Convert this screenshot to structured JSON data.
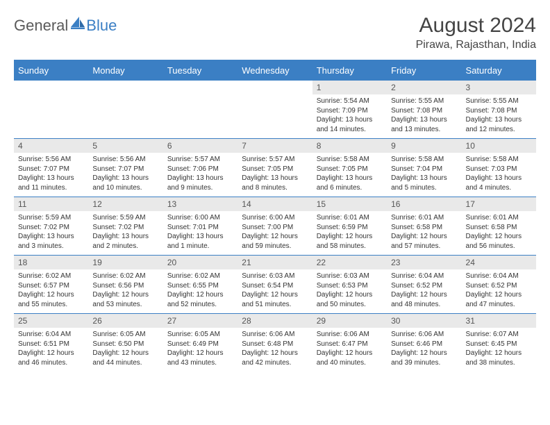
{
  "logo": {
    "text1": "General",
    "text2": "Blue"
  },
  "title": "August 2024",
  "location": "Pirawa, Rajasthan, India",
  "colors": {
    "brand_blue": "#3b7fc4",
    "daynum_bg": "#e9e9e9",
    "text": "#333333",
    "header_text": "#444444",
    "background": "#ffffff"
  },
  "fonts": {
    "title_size_pt": 22,
    "location_size_pt": 12,
    "dayhead_size_pt": 10,
    "body_size_pt": 7.5
  },
  "day_headers": [
    "Sunday",
    "Monday",
    "Tuesday",
    "Wednesday",
    "Thursday",
    "Friday",
    "Saturday"
  ],
  "weeks": [
    [
      null,
      null,
      null,
      null,
      {
        "n": "1",
        "sr": "Sunrise: 5:54 AM",
        "ss": "Sunset: 7:09 PM",
        "d1": "Daylight: 13 hours",
        "d2": "and 14 minutes."
      },
      {
        "n": "2",
        "sr": "Sunrise: 5:55 AM",
        "ss": "Sunset: 7:08 PM",
        "d1": "Daylight: 13 hours",
        "d2": "and 13 minutes."
      },
      {
        "n": "3",
        "sr": "Sunrise: 5:55 AM",
        "ss": "Sunset: 7:08 PM",
        "d1": "Daylight: 13 hours",
        "d2": "and 12 minutes."
      }
    ],
    [
      {
        "n": "4",
        "sr": "Sunrise: 5:56 AM",
        "ss": "Sunset: 7:07 PM",
        "d1": "Daylight: 13 hours",
        "d2": "and 11 minutes."
      },
      {
        "n": "5",
        "sr": "Sunrise: 5:56 AM",
        "ss": "Sunset: 7:07 PM",
        "d1": "Daylight: 13 hours",
        "d2": "and 10 minutes."
      },
      {
        "n": "6",
        "sr": "Sunrise: 5:57 AM",
        "ss": "Sunset: 7:06 PM",
        "d1": "Daylight: 13 hours",
        "d2": "and 9 minutes."
      },
      {
        "n": "7",
        "sr": "Sunrise: 5:57 AM",
        "ss": "Sunset: 7:05 PM",
        "d1": "Daylight: 13 hours",
        "d2": "and 8 minutes."
      },
      {
        "n": "8",
        "sr": "Sunrise: 5:58 AM",
        "ss": "Sunset: 7:05 PM",
        "d1": "Daylight: 13 hours",
        "d2": "and 6 minutes."
      },
      {
        "n": "9",
        "sr": "Sunrise: 5:58 AM",
        "ss": "Sunset: 7:04 PM",
        "d1": "Daylight: 13 hours",
        "d2": "and 5 minutes."
      },
      {
        "n": "10",
        "sr": "Sunrise: 5:58 AM",
        "ss": "Sunset: 7:03 PM",
        "d1": "Daylight: 13 hours",
        "d2": "and 4 minutes."
      }
    ],
    [
      {
        "n": "11",
        "sr": "Sunrise: 5:59 AM",
        "ss": "Sunset: 7:02 PM",
        "d1": "Daylight: 13 hours",
        "d2": "and 3 minutes."
      },
      {
        "n": "12",
        "sr": "Sunrise: 5:59 AM",
        "ss": "Sunset: 7:02 PM",
        "d1": "Daylight: 13 hours",
        "d2": "and 2 minutes."
      },
      {
        "n": "13",
        "sr": "Sunrise: 6:00 AM",
        "ss": "Sunset: 7:01 PM",
        "d1": "Daylight: 13 hours",
        "d2": "and 1 minute."
      },
      {
        "n": "14",
        "sr": "Sunrise: 6:00 AM",
        "ss": "Sunset: 7:00 PM",
        "d1": "Daylight: 12 hours",
        "d2": "and 59 minutes."
      },
      {
        "n": "15",
        "sr": "Sunrise: 6:01 AM",
        "ss": "Sunset: 6:59 PM",
        "d1": "Daylight: 12 hours",
        "d2": "and 58 minutes."
      },
      {
        "n": "16",
        "sr": "Sunrise: 6:01 AM",
        "ss": "Sunset: 6:58 PM",
        "d1": "Daylight: 12 hours",
        "d2": "and 57 minutes."
      },
      {
        "n": "17",
        "sr": "Sunrise: 6:01 AM",
        "ss": "Sunset: 6:58 PM",
        "d1": "Daylight: 12 hours",
        "d2": "and 56 minutes."
      }
    ],
    [
      {
        "n": "18",
        "sr": "Sunrise: 6:02 AM",
        "ss": "Sunset: 6:57 PM",
        "d1": "Daylight: 12 hours",
        "d2": "and 55 minutes."
      },
      {
        "n": "19",
        "sr": "Sunrise: 6:02 AM",
        "ss": "Sunset: 6:56 PM",
        "d1": "Daylight: 12 hours",
        "d2": "and 53 minutes."
      },
      {
        "n": "20",
        "sr": "Sunrise: 6:02 AM",
        "ss": "Sunset: 6:55 PM",
        "d1": "Daylight: 12 hours",
        "d2": "and 52 minutes."
      },
      {
        "n": "21",
        "sr": "Sunrise: 6:03 AM",
        "ss": "Sunset: 6:54 PM",
        "d1": "Daylight: 12 hours",
        "d2": "and 51 minutes."
      },
      {
        "n": "22",
        "sr": "Sunrise: 6:03 AM",
        "ss": "Sunset: 6:53 PM",
        "d1": "Daylight: 12 hours",
        "d2": "and 50 minutes."
      },
      {
        "n": "23",
        "sr": "Sunrise: 6:04 AM",
        "ss": "Sunset: 6:52 PM",
        "d1": "Daylight: 12 hours",
        "d2": "and 48 minutes."
      },
      {
        "n": "24",
        "sr": "Sunrise: 6:04 AM",
        "ss": "Sunset: 6:52 PM",
        "d1": "Daylight: 12 hours",
        "d2": "and 47 minutes."
      }
    ],
    [
      {
        "n": "25",
        "sr": "Sunrise: 6:04 AM",
        "ss": "Sunset: 6:51 PM",
        "d1": "Daylight: 12 hours",
        "d2": "and 46 minutes."
      },
      {
        "n": "26",
        "sr": "Sunrise: 6:05 AM",
        "ss": "Sunset: 6:50 PM",
        "d1": "Daylight: 12 hours",
        "d2": "and 44 minutes."
      },
      {
        "n": "27",
        "sr": "Sunrise: 6:05 AM",
        "ss": "Sunset: 6:49 PM",
        "d1": "Daylight: 12 hours",
        "d2": "and 43 minutes."
      },
      {
        "n": "28",
        "sr": "Sunrise: 6:06 AM",
        "ss": "Sunset: 6:48 PM",
        "d1": "Daylight: 12 hours",
        "d2": "and 42 minutes."
      },
      {
        "n": "29",
        "sr": "Sunrise: 6:06 AM",
        "ss": "Sunset: 6:47 PM",
        "d1": "Daylight: 12 hours",
        "d2": "and 40 minutes."
      },
      {
        "n": "30",
        "sr": "Sunrise: 6:06 AM",
        "ss": "Sunset: 6:46 PM",
        "d1": "Daylight: 12 hours",
        "d2": "and 39 minutes."
      },
      {
        "n": "31",
        "sr": "Sunrise: 6:07 AM",
        "ss": "Sunset: 6:45 PM",
        "d1": "Daylight: 12 hours",
        "d2": "and 38 minutes."
      }
    ]
  ]
}
